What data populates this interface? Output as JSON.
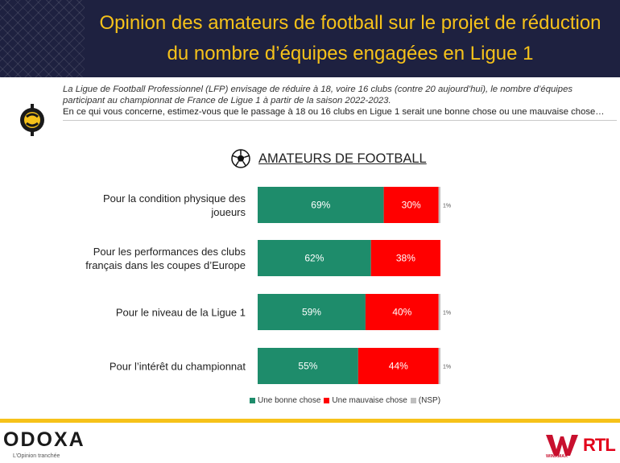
{
  "header": {
    "title_line1": "Opinion des amateurs de football sur le projet de réduction",
    "title_line2": "du nombre d’équipes engagées en Ligue 1"
  },
  "question": {
    "intro": "La Ligue de Football Professionnel (LFP) envisage de réduire à 18, voire 16 clubs (contre 20 aujourd’hui), le nombre d’équipes participant au championnat de France de Ligue 1 à partir de la saison 2022-2023.",
    "text": "En ce qui vous concerne, estimez-vous que le passage à 18 ou 16 clubs en Ligue 1 serait une bonne chose ou une mauvaise chose…"
  },
  "section": {
    "icon": "football-icon",
    "title": "AMATEURS DE FOOTBALL"
  },
  "chart_data": {
    "type": "bar",
    "orientation": "horizontal",
    "stacked": true,
    "unit": "%",
    "categories": [
      "Pour la condition physique des joueurs",
      "Pour les performances des clubs français dans les coupes d’Europe",
      "Pour le niveau de la Ligue 1",
      "Pour l’intérêt du championnat"
    ],
    "category_lines": [
      [
        "Pour la condition physique des",
        "joueurs"
      ],
      [
        "Pour les performances des clubs",
        "français dans les coupes d’Europe"
      ],
      [
        "Pour le niveau de la Ligue 1"
      ],
      [
        "Pour l’intérêt du championnat"
      ]
    ],
    "series": [
      {
        "name": "Une bonne chose",
        "color": "#1e8c6b",
        "values": [
          69,
          62,
          59,
          55
        ],
        "labels": [
          "69%",
          "62%",
          "59%",
          "55%"
        ]
      },
      {
        "name": "Une mauvaise chose",
        "color": "#ff0000",
        "values": [
          30,
          38,
          40,
          44
        ],
        "labels": [
          "30%",
          "38%",
          "40%",
          "44%"
        ]
      },
      {
        "name": "(NSP)",
        "color": "#bfbfbf",
        "values": [
          1,
          0,
          1,
          1
        ],
        "labels": [
          "1%",
          "",
          "1%",
          "1%"
        ]
      }
    ],
    "legend_position": "bottom",
    "grid": false
  },
  "footer": {
    "brand": "ODOXA",
    "tagline": "L’Opinion tranchée",
    "partner1": "WINAMAX",
    "partner2": "RTL"
  }
}
